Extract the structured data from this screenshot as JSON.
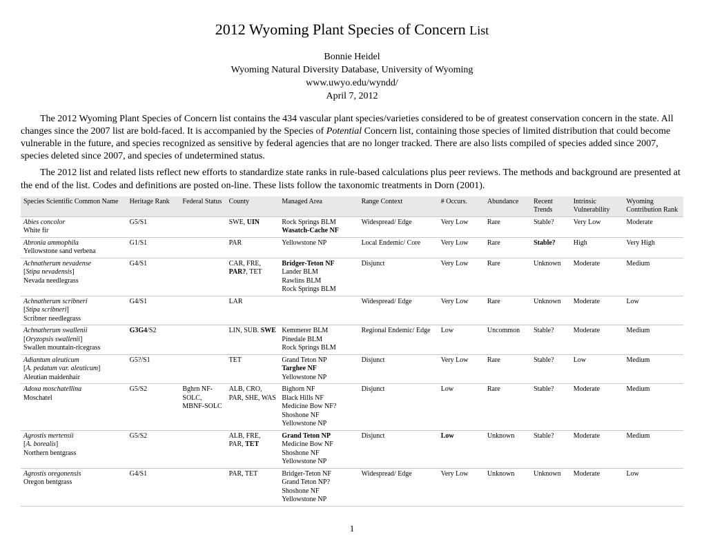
{
  "header": {
    "title_main": "2012 Wyoming Plant Species of Concern",
    "title_suffix": "List",
    "author": "Bonnie Heidel",
    "org": "Wyoming Natural Diversity Database, University of Wyoming",
    "url": "www.uwyo.edu/wyndd/",
    "date": "April 7, 2012"
  },
  "paragraphs": {
    "p1_a": "The 2012 Wyoming Plant Species of Concern list contains the 434 vascular plant species/varieties considered to be of greatest conservation concern in the state.  All changes since the 2007 list are bold-faced.  It is accompanied by the Species of ",
    "p1_potential": "Potential",
    "p1_b": " Concern list, containing those species of limited distribution that could become vulnerable in the future, and species recognized as sensitive by federal agencies that are no longer tracked.  There are also lists compiled of species added since 2007, species deleted since 2007, and species of undetermined status.",
    "p2": "The 2012 list and related lists reflect new efforts to standardize state ranks in rule-based calculations plus peer reviews. The methods and background are presented at the end of the list. Codes and definitions are posted on-line. These lists follow the taxonomic treatments in Dorn (2001)."
  },
  "table": {
    "columns": [
      "Species Scientific Common Name",
      "Heritage Rank",
      "Federal Status",
      "County",
      "Managed Area",
      "Range Context",
      "# Occurs.",
      "Abundance",
      "Recent Trends",
      "Intrinsic Vulnerability",
      "Wyoming Contribution Rank"
    ],
    "rows": [
      {
        "species_sci": "Abies concolor",
        "species_syn": "",
        "species_common": "White fir",
        "rank": "G5/S1",
        "rank_bold": false,
        "fed": "",
        "county_parts": [
          {
            "t": "SWE, ",
            "b": false
          },
          {
            "t": "UIN",
            "b": true
          }
        ],
        "managed_parts": [
          {
            "t": "Rock Springs BLM",
            "b": false
          },
          {
            "t": "\n",
            "b": false
          },
          {
            "t": "Wasatch-Cache NF",
            "b": true
          }
        ],
        "range": "Widespread/ Edge",
        "occurs": "Very Low",
        "occurs_bold": false,
        "abund": "Rare",
        "trends": "Stable?",
        "trends_bold": false,
        "vuln": "Very Low",
        "contrib": "Moderate"
      },
      {
        "species_sci": "Abronia ammophila",
        "species_syn": "",
        "species_common": "Yellowstone sand verbena",
        "rank": "G1/S1",
        "rank_bold": false,
        "fed": "",
        "county_parts": [
          {
            "t": "PAR",
            "b": false
          }
        ],
        "managed_parts": [
          {
            "t": "Yellowstone NP",
            "b": false
          }
        ],
        "range": "Local Endemic/ Core",
        "occurs": "Very Low",
        "occurs_bold": false,
        "abund": "Rare",
        "trends": "Stable?",
        "trends_bold": true,
        "vuln": "High",
        "contrib": "Very High"
      },
      {
        "species_sci": "Achnatherum nevadense",
        "species_syn": "Stipa nevadensis",
        "species_common": "Nevada needlegrass",
        "rank": "G4/S1",
        "rank_bold": false,
        "fed": "",
        "county_parts": [
          {
            "t": "CAR, FRE, ",
            "b": false
          },
          {
            "t": "PAR?",
            "b": true
          },
          {
            "t": ", TET",
            "b": false
          }
        ],
        "managed_parts": [
          {
            "t": "Bridger-Teton NF",
            "b": true
          },
          {
            "t": "\nLander BLM\nRawlins BLM\nRock Springs BLM",
            "b": false
          }
        ],
        "range": "Disjunct",
        "occurs": "Very Low",
        "occurs_bold": false,
        "abund": "Rare",
        "trends": "Unknown",
        "trends_bold": false,
        "vuln": "Moderate",
        "contrib": "Medium"
      },
      {
        "species_sci": "Achnatherum scribneri",
        "species_syn": "Stipa scribneri",
        "species_common": "Scribner needlegrass",
        "rank": "G4/S1",
        "rank_bold": false,
        "fed": "",
        "county_parts": [
          {
            "t": "LAR",
            "b": false
          }
        ],
        "managed_parts": [],
        "range": "Widespread/ Edge",
        "occurs": "Very Low",
        "occurs_bold": false,
        "abund": "Rare",
        "trends": "Unknown",
        "trends_bold": false,
        "vuln": "Moderate",
        "contrib": "Low"
      },
      {
        "species_sci": "Achnatherum swallenii",
        "species_syn": "Oryzopsis swallenii",
        "species_common": "Swallen mountain-ricegrass",
        "rank": "G3G4/S2",
        "rank_bold": true,
        "rank_bold_part": "G3G4",
        "fed": "",
        "county_parts": [
          {
            "t": "LIN, SUB. ",
            "b": false
          },
          {
            "t": "SWE",
            "b": true
          }
        ],
        "managed_parts": [
          {
            "t": "Kemmerer BLM\nPinedale BLM\nRock Springs BLM",
            "b": false
          }
        ],
        "range": "Regional Endemic/ Edge",
        "occurs": "Low",
        "occurs_bold": false,
        "abund": "Uncommon",
        "trends": "Stable?",
        "trends_bold": false,
        "vuln": "Moderate",
        "contrib": "Medium"
      },
      {
        "species_sci": "Adiantum aleuticum",
        "species_syn": "A. pedatum var. aleuticum",
        "species_common": "Aleutian maidenhair",
        "rank": "G5?/S1",
        "rank_bold": false,
        "fed": "",
        "county_parts": [
          {
            "t": "TET",
            "b": false
          }
        ],
        "managed_parts": [
          {
            "t": "Grand Teton NP\n",
            "b": false
          },
          {
            "t": "Targhee NF",
            "b": true
          },
          {
            "t": "\nYellowstone NP",
            "b": false
          }
        ],
        "range": "Disjunct",
        "occurs": "Very Low",
        "occurs_bold": false,
        "abund": "Rare",
        "trends": "Stable?",
        "trends_bold": false,
        "vuln": "Low",
        "contrib": "Medium"
      },
      {
        "species_sci": "Adoxa moschatellina",
        "species_syn": "",
        "species_common": "Moschatel",
        "rank": "G5/S2",
        "rank_bold": false,
        "fed": "Bghrn NF-SOLC, MBNF-SOLC",
        "county_parts": [
          {
            "t": "ALB, CRO, PAR, SHE, WAS",
            "b": false
          }
        ],
        "managed_parts": [
          {
            "t": "Bighorn NF\nBlack Hills NF\nMedicine Bow NF?\nShoshone NF\nYellowstone NP",
            "b": false
          }
        ],
        "range": "Disjunct",
        "occurs": "Low",
        "occurs_bold": false,
        "abund": "Rare",
        "trends": "Stable?",
        "trends_bold": false,
        "vuln": "Moderate",
        "contrib": "Medium"
      },
      {
        "species_sci": "Agrostis mertensii",
        "species_syn": "A. borealis",
        "species_common": "Northern bentgrass",
        "rank": "G5/S2",
        "rank_bold": false,
        "fed": "",
        "county_parts": [
          {
            "t": "ALB, FRE, PAR, ",
            "b": false
          },
          {
            "t": "TET",
            "b": true
          }
        ],
        "managed_parts": [
          {
            "t": "Grand Teton NP",
            "b": true
          },
          {
            "t": "\nMedicine Bow NF\nShoshone NF\nYellowstone NP",
            "b": false
          }
        ],
        "range": "Disjunct",
        "occurs": "Low",
        "occurs_bold": true,
        "abund": "Unknown",
        "trends": "Stable?",
        "trends_bold": false,
        "vuln": "Moderate",
        "contrib": "Medium"
      },
      {
        "species_sci": "Agrostis oregonensis",
        "species_syn": "",
        "species_common": "Oregon bentgrass",
        "rank": "G4/S1",
        "rank_bold": false,
        "fed": "",
        "county_parts": [
          {
            "t": "PAR, TET",
            "b": false
          }
        ],
        "managed_parts": [
          {
            "t": "Bridger-Teton NF\nGrand Teton NP?\nShoshone NF\nYellowstone NP",
            "b": false
          }
        ],
        "range": "Widespread/ Edge",
        "occurs": "Very Low",
        "occurs_bold": false,
        "abund": "Unknown",
        "trends": "Unknown",
        "trends_bold": false,
        "vuln": "Moderate",
        "contrib": "Low"
      }
    ]
  },
  "page_number": "1",
  "style": {
    "header_bg": "#e8e8e8",
    "border_color": "#c8c8c8",
    "body_fontsize": 12,
    "table_fontsize": 10,
    "title_fontsize": 22
  }
}
